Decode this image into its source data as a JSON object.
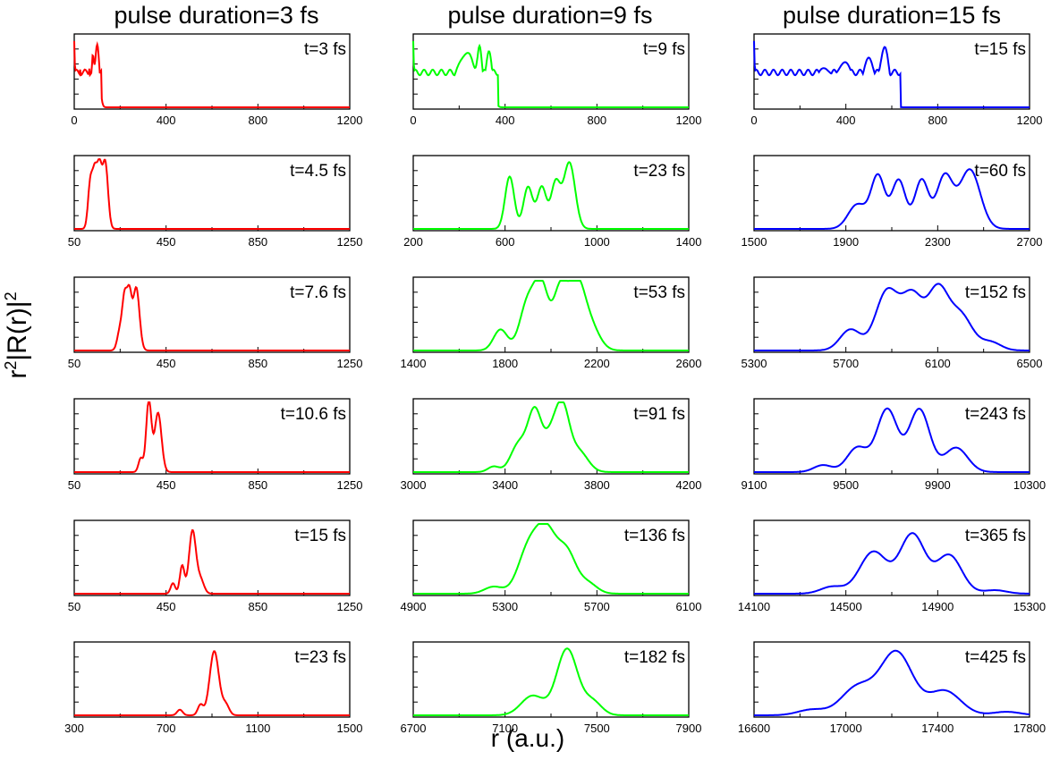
{
  "figure": {
    "column_titles": [
      "pulse duration=3 fs",
      "pulse duration=9 fs",
      "pulse duration=15 fs"
    ],
    "ylabel_main": "r",
    "ylabel_sup": "2",
    "ylabel_rest": "|R(r)|",
    "ylabel_sup2": "2",
    "xlabel": "r (a.u.)",
    "colors": [
      "#ff0000",
      "#00ff00",
      "#0000ff"
    ]
  },
  "chart_data": [
    {
      "type": "line",
      "row": 0,
      "col": 0,
      "label": "t=3 fs",
      "xlim": [
        0,
        1200
      ],
      "ticks": [
        0,
        400,
        800,
        1200
      ],
      "peaks": [
        [
          0,
          3,
          0.95
        ],
        [
          25,
          4,
          0.55
        ],
        [
          45,
          4,
          0.55
        ],
        [
          65,
          4,
          0.55
        ],
        [
          80,
          5,
          0.62
        ],
        [
          100,
          10,
          0.9
        ]
      ],
      "edge": [
        0,
        120
      ]
    },
    {
      "type": "line",
      "row": 1,
      "col": 0,
      "label": "t=4.5 fs",
      "xlim": [
        50,
        1250
      ],
      "ticks": [
        50,
        450,
        850,
        1250
      ],
      "peaks": [
        [
          120,
          10,
          0.65
        ],
        [
          140,
          10,
          0.75
        ],
        [
          160,
          10,
          0.8
        ],
        [
          185,
          12,
          0.95
        ]
      ],
      "edge": [
        105,
        200
      ]
    },
    {
      "type": "line",
      "row": 2,
      "col": 0,
      "label": "t=7.6 fs",
      "xlim": [
        50,
        1250
      ],
      "ticks": [
        50,
        450,
        850,
        1250
      ],
      "peaks": [
        [
          250,
          12,
          0.3
        ],
        [
          270,
          10,
          0.7
        ],
        [
          290,
          10,
          0.75
        ],
        [
          320,
          14,
          0.9
        ]
      ],
      "edge": [
        230,
        350
      ]
    },
    {
      "type": "line",
      "row": 3,
      "col": 0,
      "label": "t=10.6 fs",
      "xlim": [
        50,
        1250
      ],
      "ticks": [
        50,
        450,
        850,
        1250
      ],
      "peaks": [
        [
          340,
          10,
          0.2
        ],
        [
          370,
          10,
          0.6
        ],
        [
          380,
          10,
          0.55
        ],
        [
          415,
          15,
          0.85
        ]
      ],
      "edge": [
        310,
        450
      ]
    },
    {
      "type": "line",
      "row": 4,
      "col": 0,
      "label": "t=15 fs",
      "xlim": [
        50,
        1250
      ],
      "ticks": [
        50,
        450,
        850,
        1250
      ],
      "peaks": [
        [
          480,
          10,
          0.15
        ],
        [
          520,
          10,
          0.4
        ],
        [
          565,
          15,
          0.9
        ],
        [
          600,
          15,
          0.2
        ]
      ],
      "edge": [
        440,
        660
      ]
    },
    {
      "type": "line",
      "row": 5,
      "col": 0,
      "label": "t=23 fs",
      "xlim": [
        300,
        1500
      ],
      "ticks": [
        300,
        700,
        1100,
        1500
      ],
      "peaks": [
        [
          760,
          12,
          0.08
        ],
        [
          850,
          12,
          0.15
        ],
        [
          910,
          20,
          0.92
        ],
        [
          960,
          15,
          0.15
        ]
      ],
      "edge": [
        720,
        1010
      ]
    },
    {
      "type": "line",
      "row": 0,
      "col": 1,
      "label": "t=9 fs",
      "xlim": [
        0,
        1200
      ],
      "ticks": [
        0,
        400,
        800,
        1200
      ],
      "peaks": [
        [
          0,
          3,
          0.95
        ],
        [
          200,
          30,
          0.55
        ],
        [
          250,
          25,
          0.6
        ],
        [
          290,
          10,
          0.68
        ],
        [
          330,
          15,
          0.8
        ]
      ],
      "edge": [
        0,
        370
      ]
    },
    {
      "type": "line",
      "row": 1,
      "col": 1,
      "label": "t=23 fs",
      "xlim": [
        200,
        1400
      ],
      "ticks": [
        200,
        600,
        1000,
        1400
      ],
      "peaks": [
        [
          620,
          20,
          0.75
        ],
        [
          700,
          20,
          0.6
        ],
        [
          760,
          20,
          0.6
        ],
        [
          820,
          20,
          0.65
        ],
        [
          880,
          25,
          0.95
        ]
      ],
      "edge": [
        560,
        950
      ]
    },
    {
      "type": "line",
      "row": 2,
      "col": 1,
      "label": "t=53 fs",
      "xlim": [
        1400,
        2600
      ],
      "ticks": [
        1400,
        1800,
        2200,
        2600
      ],
      "peaks": [
        [
          1780,
          30,
          0.3
        ],
        [
          1900,
          35,
          0.7
        ],
        [
          1960,
          30,
          0.85
        ],
        [
          2040,
          30,
          0.85
        ],
        [
          2110,
          35,
          0.9
        ],
        [
          2170,
          40,
          0.35
        ]
      ],
      "edge": [
        1650,
        2300
      ]
    },
    {
      "type": "line",
      "row": 3,
      "col": 1,
      "label": "t=91 fs",
      "xlim": [
        3000,
        4200
      ],
      "ticks": [
        3000,
        3400,
        3800,
        4200
      ],
      "peaks": [
        [
          3350,
          25,
          0.08
        ],
        [
          3460,
          35,
          0.4
        ],
        [
          3530,
          30,
          0.85
        ],
        [
          3600,
          30,
          0.45
        ],
        [
          3650,
          30,
          0.85
        ],
        [
          3720,
          40,
          0.3
        ]
      ],
      "edge": [
        3250,
        3900
      ]
    },
    {
      "type": "line",
      "row": 4,
      "col": 1,
      "label": "t=136 fs",
      "xlim": [
        4900,
        6100
      ],
      "ticks": [
        4900,
        5300,
        5700,
        6100
      ],
      "peaks": [
        [
          5250,
          40,
          0.1
        ],
        [
          5400,
          45,
          0.6
        ],
        [
          5480,
          45,
          0.85
        ],
        [
          5570,
          40,
          0.55
        ],
        [
          5660,
          40,
          0.15
        ]
      ],
      "edge": [
        5100,
        5800
      ]
    },
    {
      "type": "line",
      "row": 5,
      "col": 1,
      "label": "t=182 fs",
      "xlim": [
        6700,
        7900
      ],
      "ticks": [
        6700,
        7100,
        7500,
        7900
      ],
      "peaks": [
        [
          7220,
          50,
          0.28
        ],
        [
          7370,
          45,
          0.95
        ],
        [
          7480,
          40,
          0.2
        ]
      ],
      "edge": [
        6900,
        7700
      ]
    },
    {
      "type": "line",
      "row": 0,
      "col": 2,
      "label": "t=15 fs",
      "xlim": [
        0,
        1200
      ],
      "ticks": [
        0,
        400,
        800,
        1200
      ],
      "peaks": [
        [
          0,
          3,
          0.95
        ],
        [
          300,
          40,
          0.55
        ],
        [
          400,
          35,
          0.62
        ],
        [
          500,
          25,
          0.7
        ],
        [
          570,
          20,
          0.85
        ]
      ],
      "edge": [
        0,
        640
      ]
    },
    {
      "type": "line",
      "row": 1,
      "col": 2,
      "label": "t=60 fs",
      "xlim": [
        1500,
        2700
      ],
      "ticks": [
        1500,
        1900,
        2300,
        2700
      ],
      "peaks": [
        [
          1950,
          40,
          0.35
        ],
        [
          2040,
          30,
          0.75
        ],
        [
          2130,
          30,
          0.7
        ],
        [
          2230,
          30,
          0.7
        ],
        [
          2330,
          35,
          0.75
        ],
        [
          2440,
          45,
          0.85
        ]
      ],
      "edge": [
        1850,
        2600
      ]
    },
    {
      "type": "line",
      "row": 2,
      "col": 2,
      "label": "t=152 fs",
      "xlim": [
        5300,
        6500
      ],
      "ticks": [
        5300,
        5700,
        6100,
        6500
      ],
      "peaks": [
        [
          5720,
          45,
          0.3
        ],
        [
          5880,
          50,
          0.85
        ],
        [
          5990,
          45,
          0.75
        ],
        [
          6100,
          45,
          0.85
        ],
        [
          6200,
          50,
          0.5
        ],
        [
          6330,
          45,
          0.12
        ]
      ],
      "edge": [
        5500,
        6500
      ]
    },
    {
      "type": "line",
      "row": 3,
      "col": 2,
      "label": "t=243 fs",
      "xlim": [
        9100,
        10300
      ],
      "ticks": [
        9100,
        9500,
        9900,
        10300
      ],
      "peaks": [
        [
          9400,
          40,
          0.1
        ],
        [
          9550,
          45,
          0.35
        ],
        [
          9680,
          45,
          0.9
        ],
        [
          9820,
          45,
          0.9
        ],
        [
          9980,
          50,
          0.35
        ]
      ],
      "edge": [
        9200,
        10200
      ]
    },
    {
      "type": "line",
      "row": 4,
      "col": 2,
      "label": "t=365 fs",
      "xlim": [
        14100,
        15300
      ],
      "ticks": [
        14100,
        14500,
        14900,
        15300
      ],
      "peaks": [
        [
          14440,
          50,
          0.1
        ],
        [
          14620,
          60,
          0.6
        ],
        [
          14790,
          55,
          0.85
        ],
        [
          14950,
          55,
          0.55
        ],
        [
          15150,
          50,
          0.05
        ]
      ],
      "edge": [
        14300,
        15300
      ]
    },
    {
      "type": "line",
      "row": 5,
      "col": 2,
      "label": "t=425 fs",
      "xlim": [
        16600,
        17800
      ],
      "ticks": [
        16600,
        17000,
        17400,
        17800
      ],
      "peaks": [
        [
          16850,
          60,
          0.08
        ],
        [
          17050,
          70,
          0.4
        ],
        [
          17220,
          70,
          0.9
        ],
        [
          17430,
          70,
          0.35
        ],
        [
          17700,
          60,
          0.05
        ]
      ],
      "edge": [
        16700,
        17800
      ]
    }
  ]
}
